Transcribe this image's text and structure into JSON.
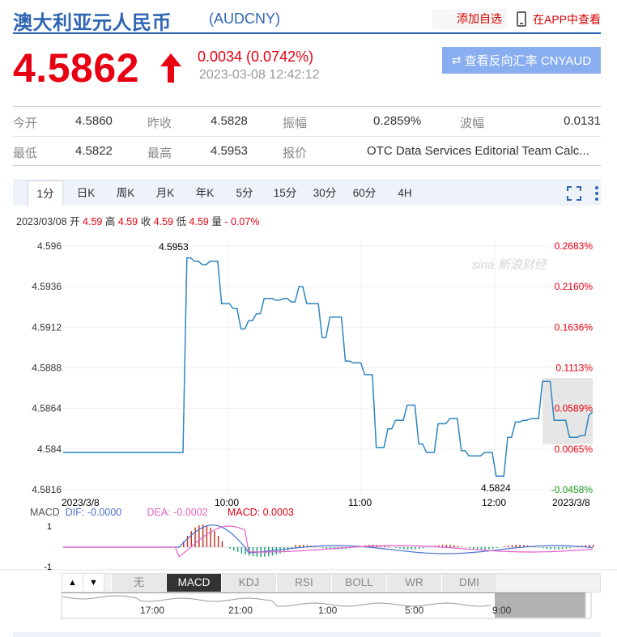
{
  "header": {
    "title": "澳大利亚元人民币",
    "code": "(AUDCNY)",
    "add_watchlist": "添加自选",
    "view_in_app": "在APP中查看"
  },
  "quote": {
    "price": "4.5862",
    "change": "0.0034 (0.0742%)",
    "timestamp": "2023-03-08 12:42:12",
    "reverse_button": "查看反向汇率 CNYAUD",
    "up_color": "#e60012"
  },
  "stats": {
    "open_label": "今开",
    "open": "4.5860",
    "prev_close_label": "昨收",
    "prev_close": "4.5828",
    "amplitude_label": "振幅",
    "amplitude": "0.2859%",
    "range_label": "波幅",
    "range": "0.0131",
    "low_label": "最低",
    "low": "4.5822",
    "high_label": "最高",
    "high": "4.5953",
    "quote_label": "报价",
    "quote_source": "OTC Data Services Editorial Team Calc..."
  },
  "tabs": [
    "1分",
    "日K",
    "周K",
    "月K",
    "年K",
    "5分",
    "15分",
    "30分",
    "60分",
    "4H"
  ],
  "active_tab": "1分",
  "ohlc": {
    "date": "2023/03/08",
    "open_label": "开",
    "open": "4.59",
    "high_label": "高",
    "high": "4.59",
    "close_label": "收",
    "close": "4.59",
    "low_label": "低",
    "low": "4.59",
    "vol_label": "量",
    "vol": "- 0.07%"
  },
  "chart_data": {
    "type": "line",
    "y_ticks": [
      "4.596",
      "4.5936",
      "4.5912",
      "4.5888",
      "4.5864",
      "4.584",
      "4.5816"
    ],
    "y_tick_values": [
      4.596,
      4.5936,
      4.5912,
      4.5888,
      4.5864,
      4.584,
      4.5816
    ],
    "pct_ticks": [
      "0.2683%",
      "0.2160%",
      "0.1636%",
      "0.1113%",
      "0.0589%",
      "0.0065%",
      "-0.0458%"
    ],
    "x_labels": [
      "2023/3/8",
      "10:00",
      "11:00",
      "12:00",
      "2023/3/8"
    ],
    "ylim": [
      4.5816,
      4.596
    ],
    "high_label": "4.5953",
    "low_label": "4.5824",
    "watermark": "sina 新浪财经",
    "series_color": "#2e86c1",
    "values": [
      4.5838,
      4.5838,
      4.5838,
      4.5838,
      4.5838,
      4.5838,
      4.5838,
      4.5838,
      4.5838,
      4.5838,
      4.5838,
      4.5838,
      4.5838,
      4.5838,
      4.5838,
      4.5838,
      4.5838,
      4.5838,
      4.5838,
      4.5838,
      4.5838,
      4.5838,
      4.5838,
      4.5838,
      4.5838,
      4.5838,
      4.5838,
      4.5838,
      4.5838,
      4.5838,
      4.5838,
      4.5838,
      4.5953,
      4.5953,
      4.5951,
      4.5951,
      4.5949,
      4.5949,
      4.5951,
      4.5951,
      4.5951,
      4.5926,
      4.5926,
      4.5926,
      4.5923,
      4.5923,
      4.5911,
      4.5911,
      4.5916,
      4.5916,
      4.592,
      4.592,
      4.5929,
      4.5929,
      4.5929,
      4.5928,
      4.5928,
      4.5929,
      4.5929,
      4.5927,
      4.5927,
      4.5936,
      4.5936,
      4.5926,
      4.5926,
      4.5926,
      4.5926,
      4.5906,
      4.5906,
      4.5918,
      4.5918,
      4.5918,
      4.5918,
      4.5892,
      4.5892,
      4.5891,
      4.5891,
      4.5891,
      4.5884,
      4.5884,
      4.5884,
      4.5841,
      4.5841,
      4.5841,
      4.5852,
      4.5852,
      4.5857,
      4.5857,
      4.5857,
      4.5866,
      4.5866,
      4.5866,
      4.5843,
      4.5843,
      4.5838,
      4.5838,
      4.5838,
      4.5855,
      4.5855,
      4.5855,
      4.5858,
      4.5858,
      4.5858,
      4.5839,
      4.5839,
      4.5836,
      4.5836,
      4.5836,
      4.5836,
      4.5838,
      4.5838,
      4.5838,
      4.5824,
      4.5824,
      4.5824,
      4.5847,
      4.5847,
      4.5856,
      4.5856,
      4.5857,
      4.5857,
      4.5858,
      4.5858,
      4.5858,
      4.588,
      4.588,
      4.588,
      4.5857,
      4.5857,
      4.5857,
      4.5857,
      4.5847,
      4.5847,
      4.5847,
      4.5848,
      4.5848,
      4.586,
      4.5862
    ]
  },
  "macd": {
    "label": "MACD",
    "dif": "DIF: -0.0000",
    "dea": "DEA: -0.0002",
    "macd": "MACD: 0.0003",
    "y_top": "1",
    "y_bottom": "-1"
  },
  "indicators": [
    "无",
    "MACD",
    "KDJ",
    "RSI",
    "BOLL",
    "WR",
    "DMI"
  ],
  "active_indicator": "MACD",
  "navigator": {
    "x_labels": [
      "17:00",
      "21:00",
      "1:00",
      "5:00",
      "9:00"
    ]
  }
}
